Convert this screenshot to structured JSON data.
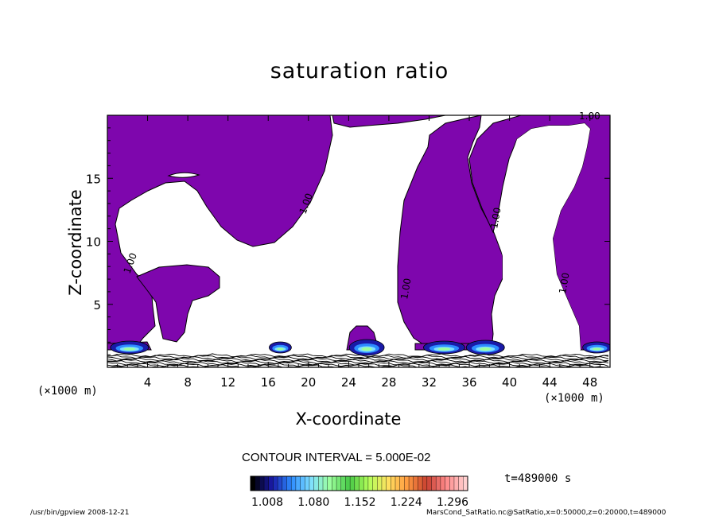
{
  "chart_data": {
    "type": "contour",
    "title": "saturation ratio",
    "xlabel": "X-coordinate",
    "ylabel": "Z-coordinate",
    "x_units": "(×1000 m)",
    "xlim": [
      0,
      50
    ],
    "ylim": [
      0,
      20
    ],
    "x_ticks": [
      4,
      8,
      12,
      16,
      20,
      24,
      28,
      32,
      36,
      40,
      44,
      48
    ],
    "y_ticks": [
      5,
      10,
      15
    ],
    "contour_interval_text": "CONTOUR INTERVAL = 5.000E-02",
    "contour_label": "1.00",
    "fill_level": 1.0,
    "fill_color": "#7e06ad",
    "colorbar": {
      "tick_labels": [
        "1.008",
        "1.080",
        "1.152",
        "1.224",
        "1.296"
      ],
      "colors": [
        "#000000",
        "#1a1aa8",
        "#2d8cff",
        "#7fe0ff",
        "#9cff9c",
        "#46c846",
        "#b4ff5a",
        "#ffe060",
        "#ff9a40",
        "#c84030",
        "#ff8a8a",
        "#ffd0d0"
      ]
    },
    "time_label": "t=489000 s",
    "footer_left": "/usr/bin/gpview   2008-12-21",
    "footer_right": "MarsCond_SatRatio.nc@SatRatio,x=0:50000,z=0:20000,t=489000"
  }
}
